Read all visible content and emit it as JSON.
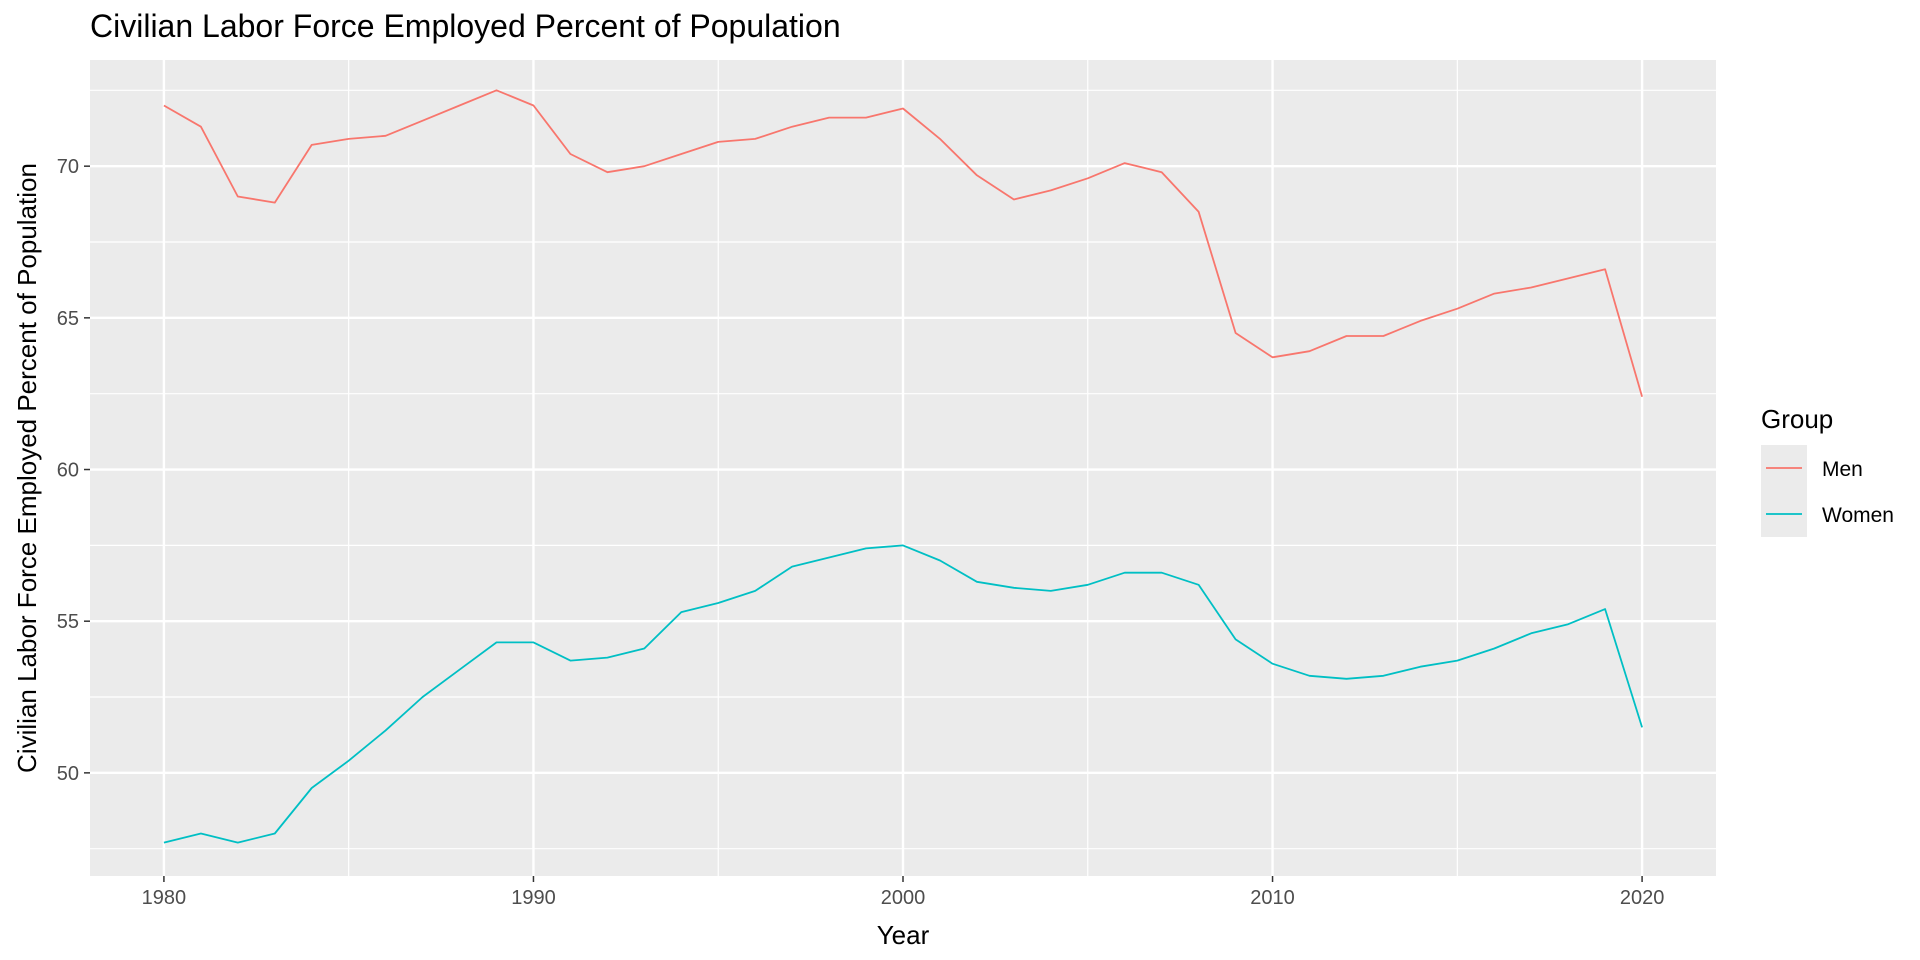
{
  "chart_data": {
    "type": "line",
    "title": "Civilian Labor Force Employed Percent of Population",
    "xlabel": "Year",
    "ylabel": "Civilian Labor Force Employed Percent of Population",
    "xlim": [
      1978,
      2022
    ],
    "ylim": [
      46.6,
      73.5
    ],
    "x_ticks": [
      1980,
      1990,
      2000,
      2010,
      2020
    ],
    "y_ticks": [
      50,
      55,
      60,
      65,
      70
    ],
    "grid": true,
    "panel_background": "#EBEBEB",
    "legend": {
      "title": "Group",
      "position": "right"
    },
    "x": [
      1980,
      1981,
      1982,
      1983,
      1984,
      1985,
      1986,
      1987,
      1988,
      1989,
      1990,
      1991,
      1992,
      1993,
      1994,
      1995,
      1996,
      1997,
      1998,
      1999,
      2000,
      2001,
      2002,
      2003,
      2004,
      2005,
      2006,
      2007,
      2008,
      2009,
      2010,
      2011,
      2012,
      2013,
      2014,
      2015,
      2016,
      2017,
      2018,
      2019,
      2020
    ],
    "series": [
      {
        "name": "Men",
        "color": "#F8766D",
        "values": [
          72.0,
          71.3,
          69.0,
          68.8,
          70.7,
          70.9,
          71.0,
          71.5,
          72.0,
          72.5,
          72.0,
          70.4,
          69.8,
          70.0,
          70.4,
          70.8,
          70.9,
          71.3,
          71.6,
          71.6,
          71.9,
          70.9,
          69.7,
          68.9,
          69.2,
          69.6,
          70.1,
          69.8,
          68.5,
          64.5,
          63.7,
          63.9,
          64.4,
          64.4,
          64.9,
          65.3,
          65.8,
          66.0,
          66.3,
          66.6,
          62.4
        ]
      },
      {
        "name": "Women",
        "color": "#00BFC4",
        "values": [
          47.7,
          48.0,
          47.7,
          48.0,
          49.5,
          50.4,
          51.4,
          52.5,
          53.4,
          54.3,
          54.3,
          53.7,
          53.8,
          54.1,
          55.3,
          55.6,
          56.0,
          56.8,
          57.1,
          57.4,
          57.5,
          57.0,
          56.3,
          56.1,
          56.0,
          56.2,
          56.6,
          56.6,
          56.2,
          54.4,
          53.6,
          53.2,
          53.1,
          53.2,
          53.5,
          53.7,
          54.1,
          54.6,
          54.9,
          55.4,
          51.5
        ]
      }
    ]
  }
}
